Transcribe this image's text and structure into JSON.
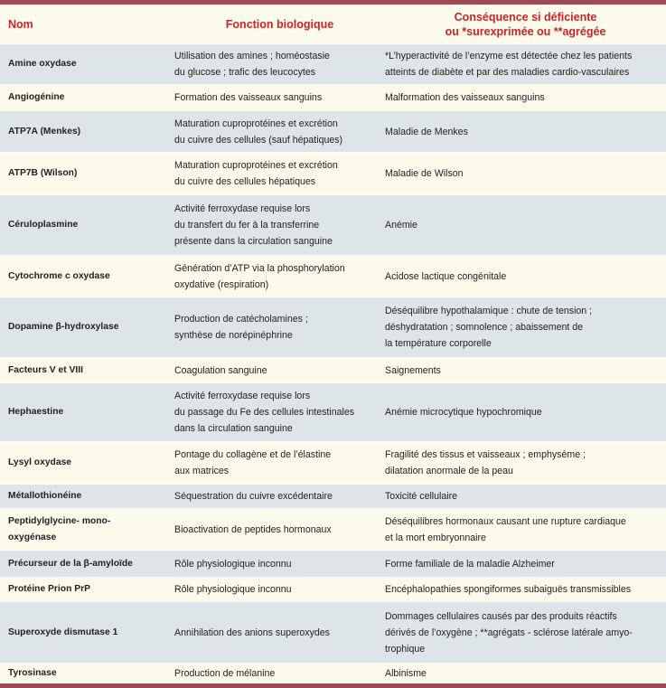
{
  "headers": {
    "name": "Nom",
    "function": "Fonction biologique",
    "consequence": "Conséquence si déficiente\nou *surexprimée ou **agrégée"
  },
  "rows": [
    {
      "name": "Amine oxydase",
      "function": "Utilisation des amines ; homéostasie\ndu glucose ; trafic des leucocytes",
      "consequence": "*L’hyperactivité de l’enzyme est détectée chez les patients\natteints de diabète et par des maladies cardio-vasculaires"
    },
    {
      "name": "Angiogénine",
      "function": "Formation des vaisseaux sanguins",
      "consequence": "Malformation des vaisseaux sanguins"
    },
    {
      "name": "ATP7A (Menkes)",
      "function": "Maturation cuproprotéines et excrétion\ndu cuivre des cellules (sauf hépatiques)",
      "consequence": "Maladie de Menkes"
    },
    {
      "name": "ATP7B (Wilson)",
      "function": "Maturation cuproprotéines et excrétion\ndu cuivre des cellules hépatiques",
      "consequence": "Maladie de Wilson"
    },
    {
      "name": "Céruloplasmine",
      "function": "Activité ferroxydase requise lors\ndu transfert du fer à la transferrine\nprésente dans la circulation sanguine",
      "consequence": "Anémie"
    },
    {
      "name": "Cytochrome c oxydase",
      "function": "Génération d’ATP via la phosphorylation\noxydative (respiration)",
      "consequence": "Acidose lactique congénitale"
    },
    {
      "name": "Dopamine β-hydroxylase",
      "function": "Production de catécholamines ;\nsynthèse de norépinéphrine",
      "consequence": "Déséquilibre hypothalamique : chute de tension ;\ndéshydratation ; somnolence ; abaissement de\nla température corporelle"
    },
    {
      "name": "Facteurs V et VIII",
      "function": "Coagulation sanguine",
      "consequence": "Saignements"
    },
    {
      "name": "Hephaestine",
      "function": "Activité ferroxydase requise lors\ndu passage du Fe des cellules intestinales\ndans la circulation sanguine",
      "consequence": "Anémie microcytique hypochromique"
    },
    {
      "name": "Lysyl oxydase",
      "function": "Pontage du collagène et de l’élastine\naux matrices",
      "consequence": "Fragilité des tissus et vaisseaux ; emphysème ;\ndilatation anormale de la peau"
    },
    {
      "name": "Métallothionéine",
      "function": "Séquestration du cuivre excédentaire",
      "consequence": "Toxicité cellulaire"
    },
    {
      "name": "Peptidylglycine- mono-\noxygénase",
      "function": "Bioactivation de peptides hormonaux",
      "consequence": "Déséquilibres hormonaux causant une rupture cardiaque\net la mort embryonnaire"
    },
    {
      "name": "Précurseur de la β-amyloïde",
      "function": "Rôle physiologique inconnu",
      "consequence": "Forme familiale de la maladie Alzheimer"
    },
    {
      "name": "Protéine Prion PrP",
      "function": "Rôle physiologique inconnu",
      "consequence": "Encéphalopathies spongiformes subaiguës transmissibles"
    },
    {
      "name": "Superoxyde dismutase 1",
      "function": "Annihilation des anions superoxydes",
      "consequence": "Dommages cellulaires causés par des produits réactifs\ndérivés de l’oxygène ; **agrégats - sclérose latérale amyo-\ntrophique"
    },
    {
      "name": "Tyrosinase",
      "function": "Production de mélanine",
      "consequence": "Albinisme"
    }
  ],
  "colors": {
    "bar": "#9c4b56",
    "header_text": "#c4262c",
    "row_alt": "#dde5e8",
    "row_plain": "#fcfaea"
  }
}
